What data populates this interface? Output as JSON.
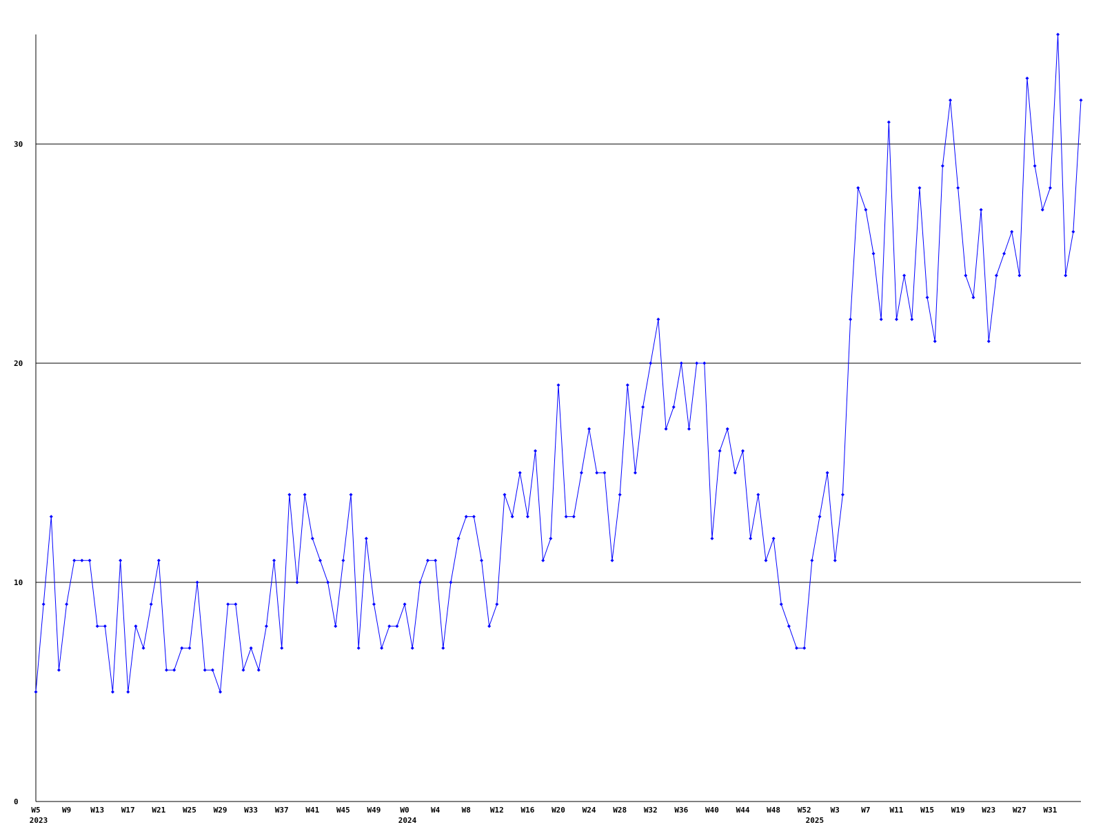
{
  "chart_data": {
    "type": "line",
    "color": "#0000ff",
    "grid": true,
    "markers": true,
    "categories": [
      "W5",
      null,
      null,
      null,
      "W9",
      null,
      null,
      null,
      "W13",
      null,
      null,
      null,
      "W17",
      null,
      null,
      null,
      "W21",
      null,
      null,
      null,
      "W25",
      null,
      null,
      null,
      "W29",
      null,
      null,
      null,
      "W33",
      null,
      null,
      null,
      "W37",
      null,
      null,
      null,
      "W41",
      null,
      null,
      null,
      "W45",
      null,
      null,
      null,
      "W49",
      null,
      null,
      null,
      "W0",
      null,
      null,
      null,
      "W4",
      null,
      null,
      null,
      "W8",
      null,
      null,
      null,
      "W12",
      null,
      null,
      null,
      "W16",
      null,
      null,
      null,
      "W20",
      null,
      null,
      null,
      "W24",
      null,
      null,
      null,
      "W28",
      null,
      null,
      null,
      "W32",
      null,
      null,
      null,
      "W36",
      null,
      null,
      null,
      "W40",
      null,
      null,
      null,
      "W44",
      null,
      null,
      null,
      "W48",
      null,
      null,
      null,
      "W52",
      null,
      null,
      null,
      "W3",
      null,
      null,
      null,
      "W7",
      null,
      null,
      null,
      "W11",
      null,
      null,
      null,
      "W15",
      null,
      null,
      null,
      "W19",
      null,
      null,
      null,
      "W23",
      null,
      null,
      null,
      "W27",
      null,
      null,
      null,
      "W31",
      null,
      null,
      null,
      null
    ],
    "category_groups": [
      "2023",
      null,
      null,
      null,
      null,
      null,
      null,
      null,
      null,
      null,
      null,
      null,
      null,
      null,
      null,
      null,
      null,
      null,
      null,
      null,
      null,
      null,
      null,
      null,
      null,
      null,
      null,
      null,
      null,
      null,
      null,
      null,
      null,
      null,
      null,
      null,
      null,
      null,
      null,
      null,
      null,
      null,
      null,
      null,
      null,
      null,
      null,
      null,
      "2024",
      null,
      null,
      null,
      null,
      null,
      null,
      null,
      null,
      null,
      null,
      null,
      null,
      null,
      null,
      null,
      null,
      null,
      null,
      null,
      null,
      null,
      null,
      null,
      null,
      null,
      null,
      null,
      null,
      null,
      null,
      null,
      null,
      null,
      null,
      null,
      null,
      null,
      null,
      null,
      null,
      null,
      null,
      null,
      null,
      null,
      null,
      null,
      null,
      null,
      null,
      null,
      null,
      "2025",
      null,
      null,
      null,
      null,
      null,
      null,
      null,
      null,
      null,
      null,
      null,
      null,
      null,
      null,
      null,
      null,
      null,
      null,
      null,
      null,
      null,
      null,
      null,
      null,
      null,
      null,
      null,
      null,
      null,
      null,
      null,
      null,
      null,
      null,
      null
    ],
    "values": [
      5,
      9,
      13,
      6,
      9,
      11,
      11,
      11,
      8,
      8,
      5,
      11,
      5,
      8,
      7,
      9,
      11,
      6,
      6,
      7,
      7,
      10,
      6,
      6,
      5,
      9,
      9,
      6,
      7,
      6,
      8,
      11,
      7,
      14,
      10,
      14,
      12,
      11,
      10,
      8,
      11,
      14,
      7,
      12,
      9,
      7,
      8,
      8,
      9,
      7,
      10,
      11,
      11,
      7,
      10,
      12,
      13,
      13,
      11,
      8,
      9,
      14,
      13,
      15,
      13,
      16,
      11,
      12,
      19,
      13,
      13,
      15,
      17,
      15,
      15,
      11,
      14,
      19,
      15,
      18,
      20,
      22,
      17,
      18,
      20,
      17,
      20,
      20,
      12,
      16,
      17,
      15,
      16,
      12,
      14,
      11,
      12,
      9,
      8,
      7,
      7,
      11,
      13,
      15,
      11,
      14,
      22,
      28,
      27,
      25,
      22,
      31,
      22,
      24,
      22,
      28,
      23,
      21,
      29,
      32,
      28,
      24,
      23,
      27,
      21,
      24,
      25,
      26,
      24,
      33,
      29,
      27,
      28,
      35,
      24,
      26,
      32
    ],
    "ylim": [
      0,
      35
    ],
    "yticks": [
      0,
      10,
      20,
      30
    ]
  }
}
